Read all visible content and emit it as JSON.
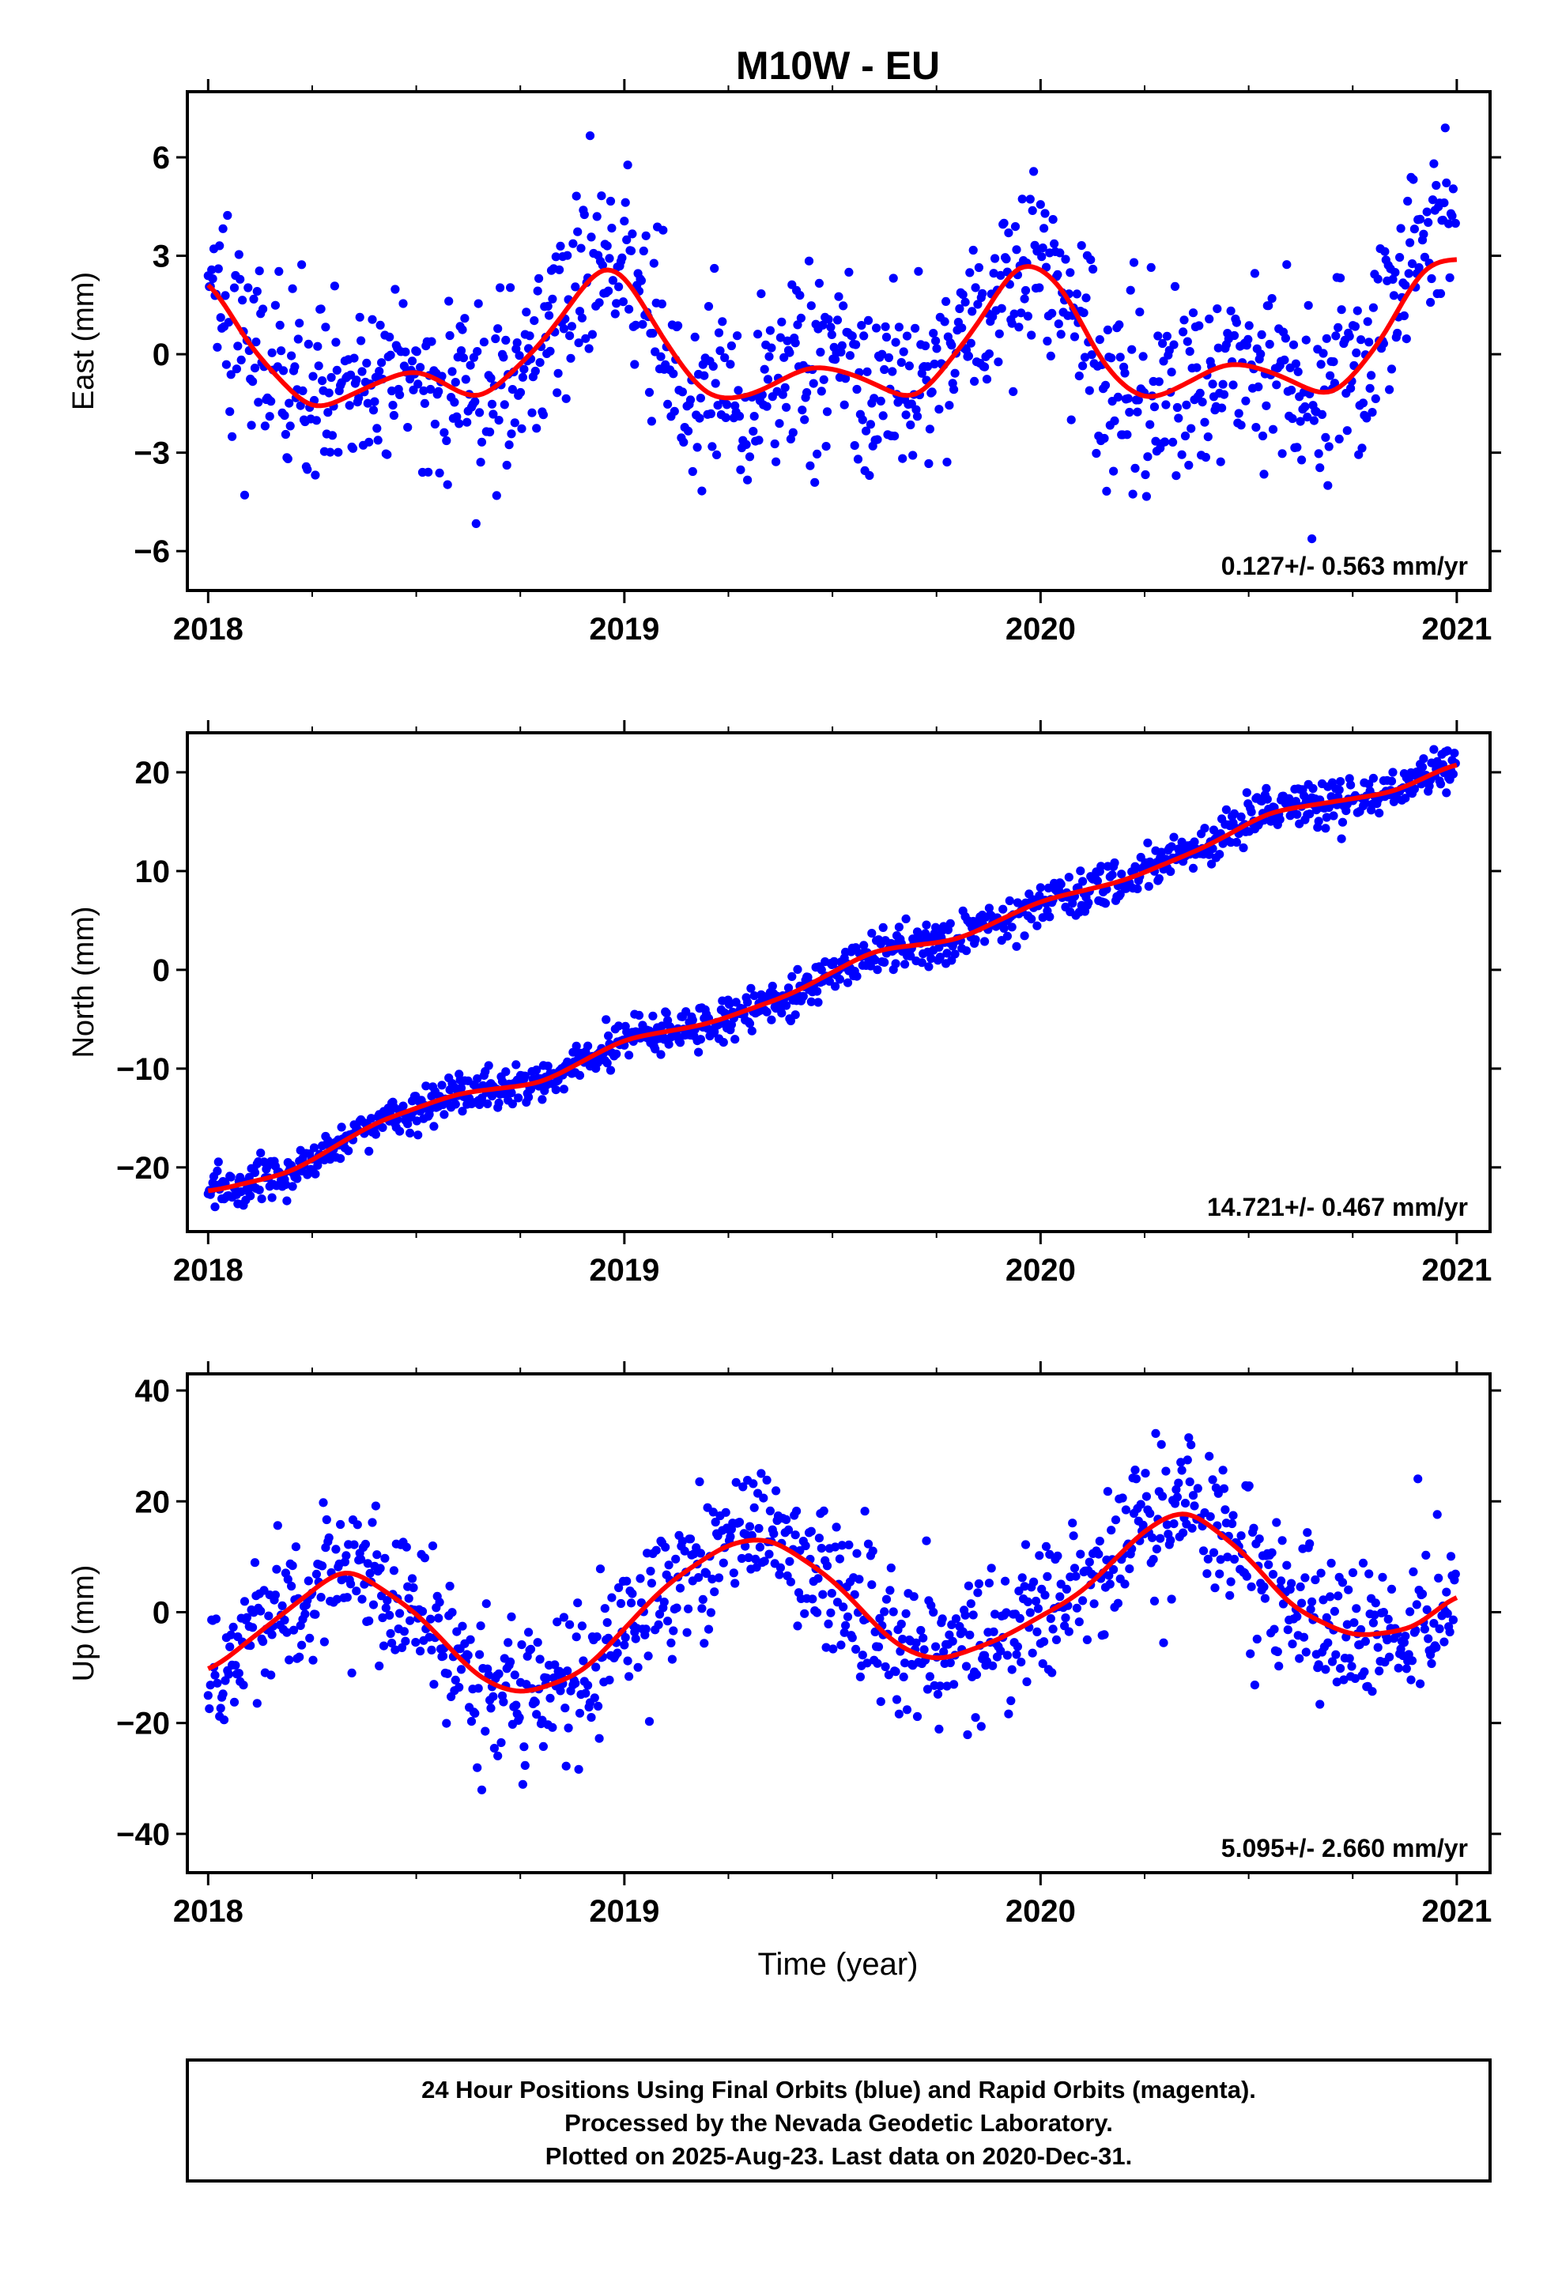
{
  "title": "M10W - EU",
  "x_axis_label": "Time (year)",
  "colors": {
    "final_orbits": "#0000ff",
    "rapid_orbits": "#ff00ff",
    "model_fit": "#ff0000",
    "frame": "#000000"
  },
  "chart_data": [
    {
      "type": "scatter",
      "component": "east",
      "ylabel": "East (mm)",
      "xlim": [
        2017.95,
        2021.08
      ],
      "ylim": [
        -7.2,
        8.0
      ],
      "xticks": [
        2018,
        2019,
        2020,
        2021
      ],
      "yticks": [
        -6,
        -3,
        0,
        3,
        6
      ],
      "ytick_labels": [
        "−6",
        "−3",
        "0",
        "3",
        "6"
      ],
      "rate_label": "0.127+/- 0.563 mm/yr",
      "series": [
        {
          "marker": "dot",
          "x_range": [
            2018.0,
            2020.997
          ],
          "approx_count": 1095,
          "noise_sd": 1.45,
          "tail_drift": {
            "start": 2020.75,
            "end": 2021.0,
            "amount": 1.8
          }
        },
        {
          "style": "line",
          "x": [
            2018.0,
            2018.1,
            2018.25,
            2018.4,
            2018.5,
            2018.65,
            2018.8,
            2018.95,
            2019.0,
            2019.1,
            2019.2,
            2019.3,
            2019.45,
            2019.55,
            2019.7,
            2019.85,
            2019.95,
            2020.05,
            2020.15,
            2020.25,
            2020.35,
            2020.45,
            2020.55,
            2020.7,
            2020.82,
            2020.92,
            2021.0
          ],
          "y": [
            2.4,
            0.2,
            -1.8,
            -0.9,
            -0.4,
            -1.5,
            0.3,
            2.9,
            2.5,
            0.3,
            -1.4,
            -1.3,
            -0.3,
            -0.6,
            -1.5,
            0.9,
            3.0,
            2.2,
            -0.4,
            -1.5,
            -0.9,
            -0.2,
            -0.5,
            -1.4,
            0.4,
            2.8,
            2.9
          ]
        }
      ]
    },
    {
      "type": "scatter",
      "component": "north",
      "ylabel": "North (mm)",
      "xlim": [
        2017.95,
        2021.08
      ],
      "ylim": [
        -26.5,
        24.0
      ],
      "xticks": [
        2018,
        2019,
        2020,
        2021
      ],
      "yticks": [
        -20,
        -10,
        0,
        10,
        20
      ],
      "ytick_labels": [
        "−20",
        "−10",
        "0",
        "10",
        "20"
      ],
      "rate_label": "14.721+/- 0.467 mm/yr",
      "series": [
        {
          "marker": "dot",
          "x_range": [
            2018.0,
            2020.997
          ],
          "approx_count": 1095,
          "noise_sd": 1.1
        },
        {
          "style": "line",
          "x": [
            2018.0,
            2018.2,
            2018.4,
            2018.6,
            2018.8,
            2019.0,
            2019.2,
            2019.4,
            2019.6,
            2019.8,
            2020.0,
            2020.2,
            2020.4,
            2020.55,
            2020.7,
            2020.85,
            2021.0
          ],
          "y": [
            -22.5,
            -20.5,
            -15.5,
            -12.5,
            -11.5,
            -7.0,
            -5.5,
            -2.5,
            2.0,
            3.0,
            7.0,
            9.0,
            12.5,
            16.0,
            17.0,
            18.0,
            21.0
          ]
        }
      ]
    },
    {
      "type": "scatter",
      "component": "up",
      "ylabel": "Up (mm)",
      "xlim": [
        2017.95,
        2021.08
      ],
      "ylim": [
        -47.0,
        43.0
      ],
      "xticks": [
        2018,
        2019,
        2020,
        2021
      ],
      "yticks": [
        -40,
        -20,
        0,
        20,
        40
      ],
      "ytick_labels": [
        "−40",
        "−20",
        "0",
        "20",
        "40"
      ],
      "rate_label": "5.095+/- 2.660 mm/yr",
      "series": [
        {
          "marker": "dot",
          "x_range": [
            2018.0,
            2020.997
          ],
          "approx_count": 1095,
          "noise_sd": 6.5
        },
        {
          "style": "line",
          "x": [
            2018.0,
            2018.15,
            2018.33,
            2018.5,
            2018.65,
            2018.75,
            2018.9,
            2019.1,
            2019.25,
            2019.35,
            2019.5,
            2019.65,
            2019.75,
            2019.9,
            2020.1,
            2020.25,
            2020.35,
            2020.5,
            2020.6,
            2020.75,
            2020.9,
            2021.0
          ],
          "y": [
            -11.0,
            -2.0,
            8.5,
            0.0,
            -12.0,
            -15.0,
            -11.0,
            5.0,
            12.5,
            13.5,
            6.0,
            -6.0,
            -9.0,
            -5.0,
            3.5,
            15.0,
            19.0,
            10.0,
            1.0,
            -4.5,
            -3.0,
            3.5
          ]
        }
      ]
    }
  ],
  "footer": {
    "line1": "24 Hour Positions Using Final Orbits (blue) and Rapid Orbits (magenta).",
    "line2": "Processed by the Nevada Geodetic Laboratory.",
    "line3": "Plotted on 2025-Aug-23. Last data on 2020-Dec-31."
  }
}
